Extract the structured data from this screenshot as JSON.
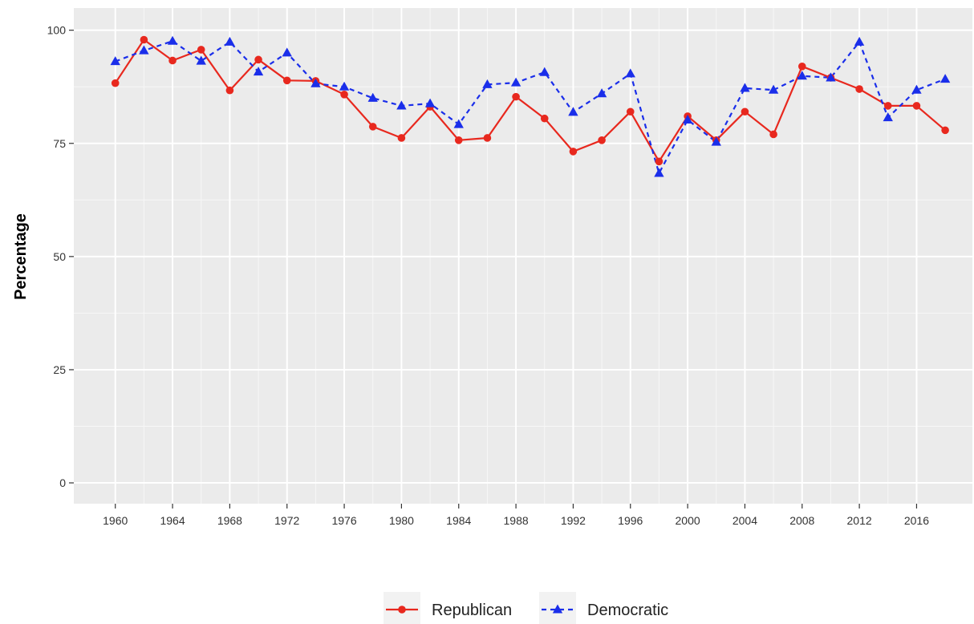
{
  "chart_data": {
    "type": "line",
    "title": "",
    "xlabel": "",
    "ylabel": "Percentage",
    "x": [
      1960,
      1962,
      1964,
      1966,
      1968,
      1970,
      1972,
      1974,
      1976,
      1978,
      1980,
      1982,
      1984,
      1986,
      1988,
      1990,
      1992,
      1994,
      1996,
      1998,
      2000,
      2002,
      2004,
      2006,
      2008,
      2010,
      2012,
      2014,
      2016,
      2018
    ],
    "xlim": [
      1957.1,
      2019.9
    ],
    "ylim": [
      -4.6,
      104.9
    ],
    "x_ticks": [
      "1960",
      "1964",
      "1968",
      "1972",
      "1976",
      "1980",
      "1984",
      "1988",
      "1992",
      "1996",
      "2000",
      "2004",
      "2008",
      "2012",
      "2016"
    ],
    "y_ticks": [
      "0",
      "25",
      "50",
      "75",
      "100"
    ],
    "grid": true,
    "legend_position": "bottom",
    "series": [
      {
        "name": "Republican",
        "color": "#e8281e",
        "line_style": "solid",
        "marker": "circle",
        "values": [
          88.3,
          97.9,
          93.3,
          95.7,
          86.7,
          93.5,
          88.9,
          88.8,
          85.8,
          78.7,
          76.2,
          83.1,
          75.7,
          76.2,
          85.3,
          80.5,
          73.2,
          75.7,
          82.0,
          71.0,
          81.0,
          75.7,
          82.0,
          77.0,
          92.0,
          89.5,
          87.0,
          83.3,
          83.3,
          77.9
        ]
      },
      {
        "name": "Democratic",
        "color": "#1a2eea",
        "line_style": "dashed",
        "marker": "triangle",
        "values": [
          93.1,
          95.5,
          97.6,
          93.2,
          97.4,
          90.8,
          95.0,
          88.2,
          87.5,
          85.0,
          83.3,
          83.8,
          79.2,
          88.0,
          88.4,
          90.7,
          81.9,
          86.0,
          90.4,
          68.4,
          80.2,
          75.3,
          87.2,
          86.8,
          89.9,
          89.5,
          97.4,
          80.7,
          86.8,
          89.2
        ]
      }
    ]
  }
}
